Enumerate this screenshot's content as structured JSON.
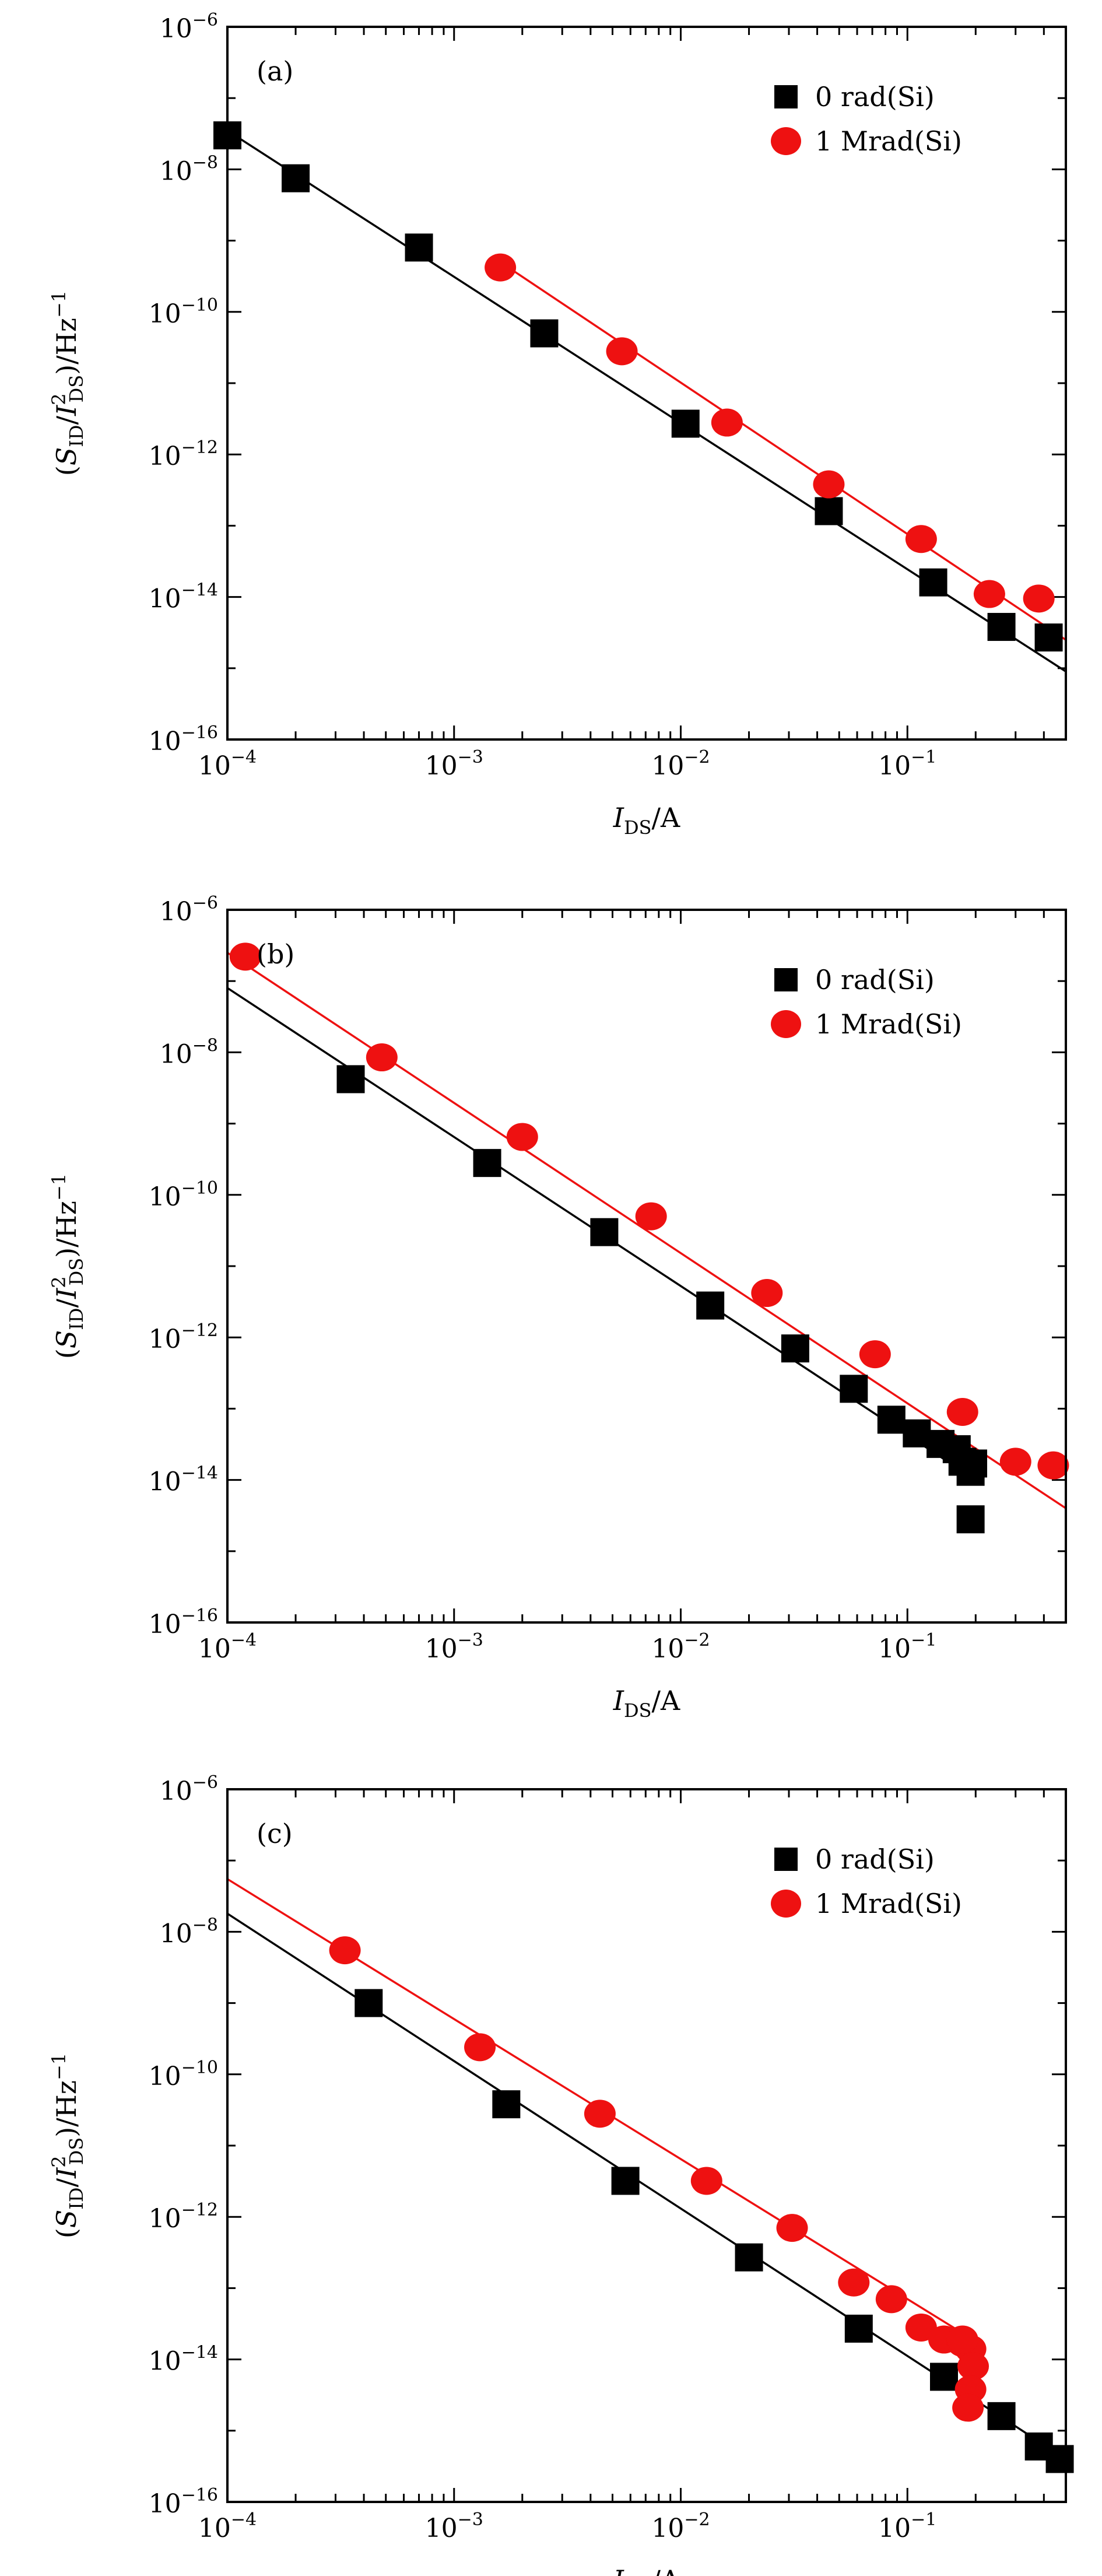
{
  "chart_data": [
    {
      "type": "scatter",
      "panel": "(a)",
      "xlabel": "I_DS/A",
      "ylabel": "(S_ID/I²_DS)/Hz⁻¹",
      "xscale": "log",
      "yscale": "log",
      "xlim": [
        0.0001,
        0.5
      ],
      "ylim": [
        1e-16,
        1e-06
      ],
      "x_ticks": [
        "10^-4",
        "10^-3",
        "10^-2",
        "10^-1"
      ],
      "y_ticks": [
        "10^-16",
        "10^-14",
        "10^-12",
        "10^-10",
        "10^-8",
        "10^-6"
      ],
      "legend_position": "top-right",
      "series": [
        {
          "name": "0 rad(Si)",
          "marker": "square",
          "color": "#000000",
          "points": [
            [
              0.0001,
              3e-08
            ],
            [
              0.0002,
              7.5e-09
            ],
            [
              0.0007,
              8e-10
            ],
            [
              0.0025,
              5e-11
            ],
            [
              0.0105,
              2.7e-12
            ],
            [
              0.045,
              1.6e-13
            ],
            [
              0.13,
              1.6e-14
            ],
            [
              0.26,
              3.8e-15
            ],
            [
              0.42,
              2.7e-15
            ]
          ],
          "fit": [
            [
              0.0001,
              3.5e-08
            ],
            [
              0.5,
              9e-16
            ]
          ]
        },
        {
          "name": "1 Mrad(Si)",
          "marker": "circle",
          "color": "#ee1111",
          "points": [
            [
              0.0016,
              4.2e-10
            ],
            [
              0.0055,
              2.8e-11
            ],
            [
              0.016,
              2.8e-12
            ],
            [
              0.045,
              3.8e-13
            ],
            [
              0.115,
              6.5e-14
            ],
            [
              0.23,
              1.1e-14
            ],
            [
              0.38,
              9.5e-15
            ]
          ],
          "fit": [
            [
              0.0016,
              5e-10
            ],
            [
              0.5,
              2.5e-15
            ]
          ]
        }
      ]
    },
    {
      "type": "scatter",
      "panel": "(b)",
      "xlabel": "I_DS/A",
      "ylabel": "(S_ID/I²_DS)/Hz⁻¹",
      "xscale": "log",
      "yscale": "log",
      "xlim": [
        0.0001,
        0.5
      ],
      "ylim": [
        1e-16,
        1e-06
      ],
      "x_ticks": [
        "10^-4",
        "10^-3",
        "10^-2",
        "10^-1"
      ],
      "y_ticks": [
        "10^-16",
        "10^-14",
        "10^-12",
        "10^-10",
        "10^-8",
        "10^-6"
      ],
      "legend_position": "top-right",
      "series": [
        {
          "name": "0 rad(Si)",
          "marker": "square",
          "color": "#000000",
          "points": [
            [
              0.00035,
              4.2e-09
            ],
            [
              0.0014,
              2.8e-10
            ],
            [
              0.0046,
              3e-11
            ],
            [
              0.0135,
              2.8e-12
            ],
            [
              0.032,
              7e-13
            ],
            [
              0.058,
              1.9e-13
            ],
            [
              0.085,
              7e-14
            ],
            [
              0.11,
              4.5e-14
            ],
            [
              0.14,
              3.2e-14
            ],
            [
              0.165,
              2.7e-14
            ],
            [
              0.175,
              1.8e-14
            ],
            [
              0.19,
              1.3e-14
            ],
            [
              0.195,
              1.7e-14
            ],
            [
              0.19,
              2.8e-15
            ]
          ],
          "fit": [
            [
              0.0001,
              8e-08
            ],
            [
              0.2,
              1e-14
            ]
          ]
        },
        {
          "name": "1 Mrad(Si)",
          "marker": "circle",
          "color": "#ee1111",
          "points": [
            [
              0.00012,
              2.2e-07
            ],
            [
              0.00048,
              8.5e-09
            ],
            [
              0.002,
              6.5e-10
            ],
            [
              0.0074,
              5e-11
            ],
            [
              0.024,
              4.2e-12
            ],
            [
              0.072,
              5.8e-13
            ],
            [
              0.175,
              9e-14
            ],
            [
              0.3,
              1.8e-14
            ],
            [
              0.44,
              1.6e-14
            ]
          ],
          "fit": [
            [
              0.0001,
              2.5e-07
            ],
            [
              0.5,
              4e-15
            ]
          ]
        }
      ]
    },
    {
      "type": "scatter",
      "panel": "(c)",
      "xlabel": "I_DS/A",
      "ylabel": "(S_ID/I²_DS)/Hz⁻¹",
      "xscale": "log",
      "yscale": "log",
      "xlim": [
        0.0001,
        0.5
      ],
      "ylim": [
        1e-16,
        1e-06
      ],
      "x_ticks": [
        "10^-4",
        "10^-3",
        "10^-2",
        "10^-1"
      ],
      "y_ticks": [
        "10^-16",
        "10^-14",
        "10^-12",
        "10^-10",
        "10^-8",
        "10^-6"
      ],
      "legend_position": "top-right",
      "series": [
        {
          "name": "0 rad(Si)",
          "marker": "square",
          "color": "#000000",
          "points": [
            [
              0.00042,
              1e-09
            ],
            [
              0.0017,
              3.8e-11
            ],
            [
              0.0057,
              3.2e-12
            ],
            [
              0.02,
              2.7e-13
            ],
            [
              0.061,
              2.7e-14
            ],
            [
              0.145,
              5.7e-15
            ],
            [
              0.26,
              1.6e-15
            ],
            [
              0.38,
              6e-16
            ],
            [
              0.47,
              4e-16
            ]
          ],
          "fit": [
            [
              0.0001,
              1.8e-08
            ],
            [
              0.5,
              4e-16
            ]
          ]
        },
        {
          "name": "1 Mrad(Si)",
          "marker": "circle",
          "color": "#ee1111",
          "points": [
            [
              0.00033,
              5.5e-09
            ],
            [
              0.0013,
              2.4e-10
            ],
            [
              0.0044,
              2.8e-11
            ],
            [
              0.013,
              3.2e-12
            ],
            [
              0.031,
              7e-13
            ],
            [
              0.058,
              1.2e-13
            ],
            [
              0.085,
              7e-14
            ],
            [
              0.115,
              2.8e-14
            ],
            [
              0.145,
              1.9e-14
            ],
            [
              0.175,
              1.7e-14
            ],
            [
              0.19,
              1.4e-14
            ],
            [
              0.195,
              8e-15
            ],
            [
              0.19,
              3.8e-15
            ],
            [
              0.185,
              2.1e-15
            ],
            [
              0.175,
              1.9e-14
            ]
          ],
          "fit": [
            [
              0.0001,
              5.5e-08
            ],
            [
              0.2,
              1.8e-14
            ]
          ]
        }
      ]
    }
  ]
}
